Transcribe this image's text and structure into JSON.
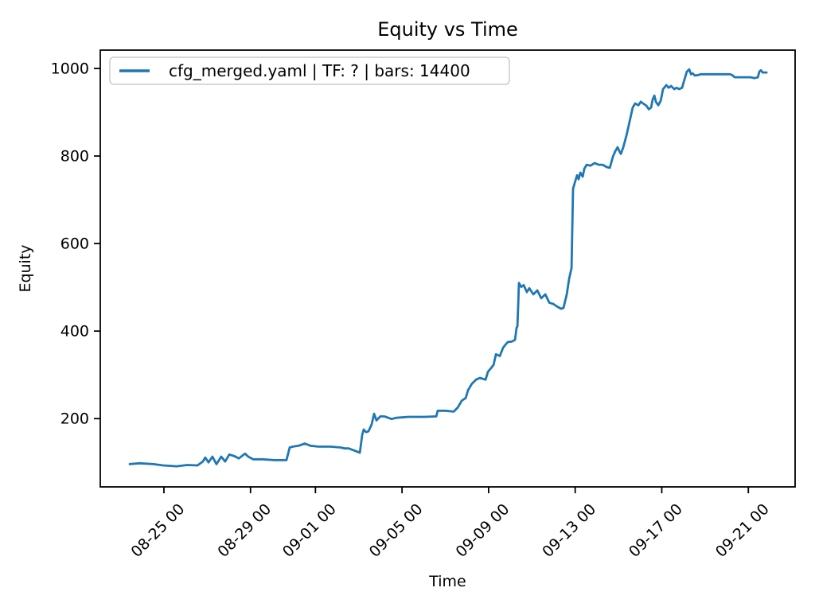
{
  "chart_data": {
    "type": "line",
    "title": "Equity vs Time",
    "xlabel": "Time",
    "ylabel": "Equity",
    "x_axis_unit": "days relative to 08-25 00:00",
    "xlim": [
      -2.94,
      29.16
    ],
    "ylim": [
      44,
      1042
    ],
    "grid": false,
    "yticks": [
      200,
      400,
      600,
      800,
      1000
    ],
    "xticks": [
      {
        "pos": 0,
        "label": "08-25 00"
      },
      {
        "pos": 4,
        "label": "08-29 00"
      },
      {
        "pos": 7,
        "label": "09-01 00"
      },
      {
        "pos": 11,
        "label": "09-05 00"
      },
      {
        "pos": 15,
        "label": "09-09 00"
      },
      {
        "pos": 19,
        "label": "09-13 00"
      },
      {
        "pos": 23,
        "label": "09-17 00"
      },
      {
        "pos": 27,
        "label": "09-21 00"
      }
    ],
    "legend": {
      "position": "upper left",
      "entries": [
        {
          "label": "cfg_merged.yaml | TF: ? | bars: 14400",
          "color": "#1f77b4"
        }
      ]
    },
    "colors": {
      "line": "#1f77b4",
      "axis": "#000000",
      "legend_border": "#cccccc",
      "background": "#ffffff"
    },
    "series": [
      {
        "name": "cfg_merged.yaml | TF: ? | bars: 14400",
        "color": "#1f77b4",
        "x": [
          -1.58,
          -1.14,
          -0.48,
          -0.04,
          0.59,
          1.07,
          1.55,
          1.8,
          1.91,
          2.06,
          2.24,
          2.43,
          2.65,
          2.83,
          3.02,
          3.27,
          3.46,
          3.75,
          3.9,
          4.12,
          4.56,
          5.11,
          5.66,
          5.81,
          5.96,
          6.22,
          6.51,
          6.77,
          7.14,
          7.69,
          8.17,
          8.35,
          8.53,
          8.86,
          9.05,
          9.16,
          9.23,
          9.34,
          9.45,
          9.6,
          9.71,
          9.82,
          10.0,
          10.19,
          10.52,
          10.74,
          11.29,
          12.03,
          12.58,
          12.65,
          13.02,
          13.39,
          13.57,
          13.76,
          13.94,
          14.05,
          14.23,
          14.42,
          14.6,
          14.86,
          14.97,
          15.12,
          15.23,
          15.34,
          15.52,
          15.67,
          15.78,
          15.89,
          16.07,
          16.22,
          16.29,
          16.33,
          16.37,
          16.4,
          16.51,
          16.62,
          16.77,
          16.88,
          17.07,
          17.25,
          17.43,
          17.62,
          17.8,
          17.99,
          18.17,
          18.35,
          18.46,
          18.61,
          18.72,
          18.83,
          18.9,
          19.01,
          19.09,
          19.16,
          19.24,
          19.35,
          19.42,
          19.53,
          19.71,
          19.9,
          20.08,
          20.27,
          20.45,
          20.6,
          20.74,
          20.85,
          20.96,
          21.04,
          21.11,
          21.22,
          21.37,
          21.48,
          21.66,
          21.77,
          21.92,
          22.03,
          22.14,
          22.29,
          22.4,
          22.51,
          22.58,
          22.66,
          22.73,
          22.84,
          22.95,
          23.06,
          23.21,
          23.32,
          23.43,
          23.58,
          23.69,
          23.8,
          23.94,
          24.05,
          24.16,
          24.27,
          24.35,
          24.42,
          24.53,
          24.68,
          24.79,
          26.15,
          26.26,
          26.37,
          26.89,
          27.11,
          27.29,
          27.44,
          27.51,
          27.58,
          27.66,
          27.84
        ],
        "y": [
          96,
          98,
          96,
          93,
          91,
          94,
          93,
          102,
          111,
          100,
          113,
          96,
          113,
          102,
          118,
          114,
          109,
          120,
          113,
          107,
          107,
          105,
          105,
          134,
          136,
          138,
          143,
          138,
          136,
          136,
          134,
          132,
          132,
          126,
          122,
          163,
          175,
          169,
          171,
          187,
          211,
          196,
          205,
          205,
          199,
          202,
          204,
          204,
          205,
          218,
          218,
          216,
          225,
          241,
          247,
          265,
          280,
          289,
          293,
          289,
          307,
          316,
          323,
          347,
          343,
          362,
          369,
          375,
          376,
          380,
          407,
          411,
          465,
          510,
          501,
          505,
          489,
          498,
          484,
          493,
          475,
          484,
          465,
          462,
          456,
          451,
          453,
          484,
          520,
          544,
          725,
          744,
          756,
          747,
          762,
          753,
          771,
          780,
          778,
          784,
          780,
          780,
          775,
          773,
          798,
          811,
          820,
          811,
          805,
          820,
          847,
          871,
          911,
          920,
          916,
          924,
          920,
          915,
          907,
          911,
          929,
          938,
          924,
          916,
          926,
          953,
          962,
          956,
          960,
          953,
          956,
          953,
          956,
          975,
          993,
          998,
          987,
          989,
          984,
          985,
          987,
          987,
          985,
          980,
          980,
          980,
          978,
          980,
          993,
          996,
          991,
          991
        ]
      }
    ]
  }
}
